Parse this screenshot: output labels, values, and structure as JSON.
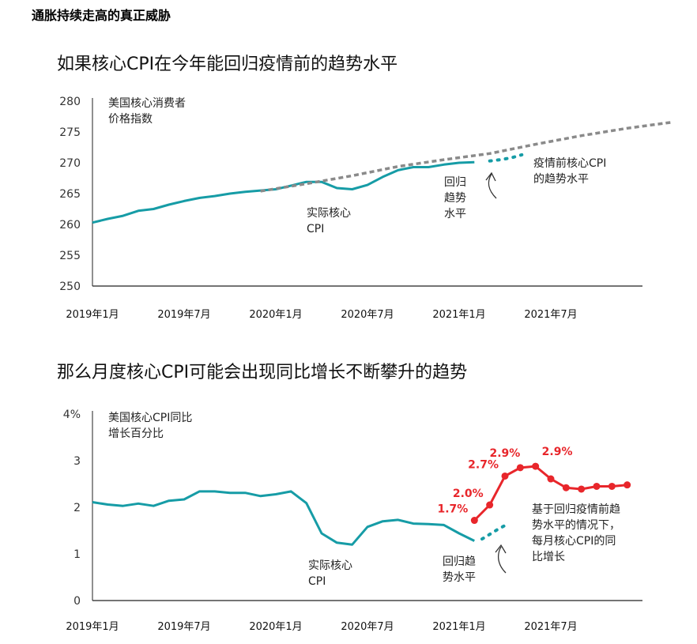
{
  "page_title": "通胀持续走高的真正威胁",
  "colors": {
    "actual": "#169ca6",
    "trend": "#8a8a8a",
    "forecast": "#e8262b"
  },
  "chart_data": [
    {
      "type": "line",
      "title": "如果核心CPI在今年能回归疫情前的趋势水平",
      "ylabel_lines": [
        "美国核心消费者",
        "价格指数"
      ],
      "ylim": [
        250,
        280
      ],
      "yticks": [
        250,
        255,
        260,
        265,
        270,
        275,
        280
      ],
      "xticks": [
        {
          "t": 0,
          "label": "2019年1月"
        },
        {
          "t": 6,
          "label": "2019年7月"
        },
        {
          "t": 12,
          "label": "2020年1月"
        },
        {
          "t": 18,
          "label": "2020年7月"
        },
        {
          "t": 24,
          "label": "2021年1月"
        },
        {
          "t": 30,
          "label": "2021年7月"
        }
      ],
      "series": [
        {
          "key": "actual",
          "values": [
            [
              0,
              260.3
            ],
            [
              1,
              260.9
            ],
            [
              2,
              261.4
            ],
            [
              3,
              262.2
            ],
            [
              4,
              262.5
            ],
            [
              5,
              263.2
            ],
            [
              6,
              263.8
            ],
            [
              7,
              264.3
            ],
            [
              8,
              264.6
            ],
            [
              9,
              265.0
            ],
            [
              10,
              265.3
            ],
            [
              11,
              265.5
            ],
            [
              12,
              265.7
            ],
            [
              13,
              266.3
            ],
            [
              14,
              266.9
            ],
            [
              15,
              266.9
            ],
            [
              16,
              265.9
            ],
            [
              17,
              265.7
            ],
            [
              18,
              266.4
            ],
            [
              19,
              267.7
            ],
            [
              20,
              268.8
            ],
            [
              21,
              269.3
            ],
            [
              22,
              269.3
            ],
            [
              23,
              269.7
            ],
            [
              24,
              270.0
            ],
            [
              25,
              270.1
            ]
          ]
        },
        {
          "key": "trend",
          "values": [
            [
              11,
              265.4
            ],
            [
              14,
              266.6
            ],
            [
              17,
              267.9
            ],
            [
              20,
              269.4
            ],
            [
              23,
              270.5
            ],
            [
              26,
              271.5
            ],
            [
              29,
              273.0
            ],
            [
              32,
              274.4
            ],
            [
              35,
              275.6
            ],
            [
              38,
              276.6
            ]
          ]
        },
        {
          "key": "return",
          "values": [
            [
              26,
              270.3
            ],
            [
              26.7,
              270.5
            ],
            [
              27.4,
              270.8
            ],
            [
              28.1,
              271.3
            ]
          ]
        }
      ],
      "annotations": [
        {
          "key": "actual_label",
          "lines": [
            "实际核心",
            "CPI"
          ]
        },
        {
          "key": "return_label",
          "lines": [
            "回归",
            "趋势",
            "水平"
          ]
        },
        {
          "key": "trend_label",
          "lines": [
            "疫情前核心CPI",
            "的趋势水平"
          ]
        }
      ]
    },
    {
      "type": "line",
      "title": "那么月度核心CPI可能会出现同比增长不断攀升的趋势",
      "ylabel_lines": [
        "美国核心CPI同比",
        "增长百分比"
      ],
      "ylim": [
        0,
        4
      ],
      "yticks": [
        0,
        1,
        2,
        3,
        4
      ],
      "ytick_labels": [
        "0",
        "1",
        "2",
        "3",
        "4%"
      ],
      "xticks": [
        {
          "t": 0,
          "label": "2019年1月"
        },
        {
          "t": 6,
          "label": "2019年7月"
        },
        {
          "t": 12,
          "label": "2020年1月"
        },
        {
          "t": 18,
          "label": "2020年7月"
        },
        {
          "t": 24,
          "label": "2021年1月"
        },
        {
          "t": 30,
          "label": "2021年7月"
        }
      ],
      "series": [
        {
          "key": "actual",
          "values": [
            [
              0,
              2.11
            ],
            [
              1,
              2.06
            ],
            [
              2,
              2.03
            ],
            [
              3,
              2.08
            ],
            [
              4,
              2.03
            ],
            [
              5,
              2.14
            ],
            [
              6,
              2.17
            ],
            [
              7,
              2.34
            ],
            [
              8,
              2.34
            ],
            [
              9,
              2.31
            ],
            [
              10,
              2.31
            ],
            [
              11,
              2.24
            ],
            [
              12,
              2.28
            ],
            [
              13,
              2.34
            ],
            [
              14,
              2.09
            ],
            [
              15,
              1.44
            ],
            [
              16,
              1.24
            ],
            [
              17,
              1.2
            ],
            [
              18,
              1.58
            ],
            [
              19,
              1.7
            ],
            [
              20,
              1.73
            ],
            [
              21,
              1.65
            ],
            [
              22,
              1.64
            ],
            [
              23,
              1.62
            ],
            [
              24,
              1.44
            ],
            [
              25,
              1.28
            ]
          ]
        },
        {
          "key": "return",
          "values": [
            [
              25.5,
              1.32
            ],
            [
              26,
              1.42
            ],
            [
              26.5,
              1.52
            ],
            [
              27,
              1.61
            ]
          ]
        },
        {
          "key": "forecast",
          "values": [
            [
              25,
              1.72
            ],
            [
              26,
              2.05
            ],
            [
              27,
              2.67
            ],
            [
              28,
              2.85
            ],
            [
              29,
              2.88
            ],
            [
              30,
              2.61
            ],
            [
              31,
              2.42
            ],
            [
              32,
              2.39
            ],
            [
              33,
              2.45
            ],
            [
              34,
              2.45
            ],
            [
              35,
              2.48
            ]
          ]
        }
      ],
      "data_labels": [
        {
          "t": 25,
          "v": 1.72,
          "text": "1.7%"
        },
        {
          "t": 26,
          "v": 2.05,
          "text": "2.0%"
        },
        {
          "t": 27,
          "v": 2.67,
          "text": "2.7%"
        },
        {
          "t": 28,
          "v": 2.85,
          "text": "2.9%"
        },
        {
          "t": 29,
          "v": 2.88,
          "text": "2.9%"
        }
      ],
      "annotations": [
        {
          "key": "actual_label",
          "lines": [
            "实际核心",
            "CPI"
          ]
        },
        {
          "key": "return_label",
          "lines": [
            "回归趋",
            "势水平"
          ]
        },
        {
          "key": "forecast_label",
          "lines": [
            "基于回归疫情前趋",
            "势水平的情况下，",
            "每月核心CPI的同",
            "比增长"
          ]
        }
      ]
    }
  ]
}
